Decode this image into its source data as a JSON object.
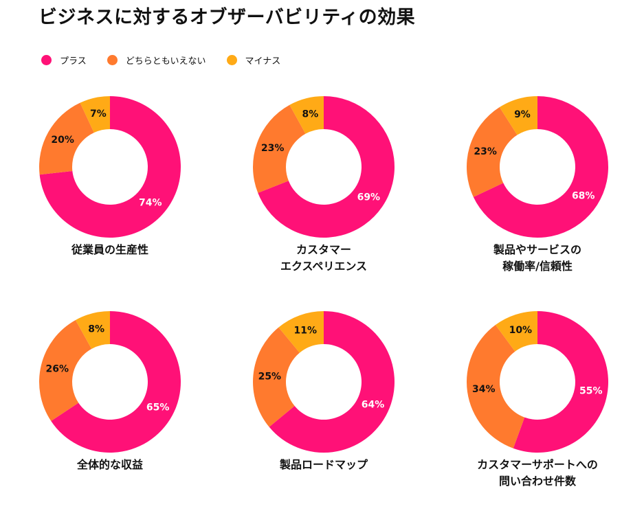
{
  "title": "ビジネスに対するオブザーバビリティの効果",
  "legend": [
    {
      "label": "プラス",
      "color": "#FF1177"
    },
    {
      "label": "どちらともいえない",
      "color": "#FF7A2E"
    },
    {
      "label": "マイナス",
      "color": "#FFAA16"
    }
  ],
  "chart_data": [
    {
      "type": "pie",
      "title": "従業員の生産性",
      "categories": [
        "プラス",
        "どちらともいえない",
        "マイナス"
      ],
      "values": [
        74,
        20,
        7
      ],
      "labels": [
        "74%",
        "20%",
        "7%"
      ]
    },
    {
      "type": "pie",
      "title": "カスタマー\nエクスペリエンス",
      "categories": [
        "プラス",
        "どちらともいえない",
        "マイナス"
      ],
      "values": [
        69,
        23,
        8
      ],
      "labels": [
        "69%",
        "23%",
        "8%"
      ]
    },
    {
      "type": "pie",
      "title": "製品やサービスの\n稼働率/信頼性",
      "categories": [
        "プラス",
        "どちらともいえない",
        "マイナス"
      ],
      "values": [
        68,
        23,
        9
      ],
      "labels": [
        "68%",
        "23%",
        "9%"
      ]
    },
    {
      "type": "pie",
      "title": "全体的な収益",
      "categories": [
        "プラス",
        "どちらともいえない",
        "マイナス"
      ],
      "values": [
        65,
        26,
        8
      ],
      "labels": [
        "65%",
        "26%",
        "8%"
      ]
    },
    {
      "type": "pie",
      "title": "製品ロードマップ",
      "categories": [
        "プラス",
        "どちらともいえない",
        "マイナス"
      ],
      "values": [
        64,
        25,
        11
      ],
      "labels": [
        "64%",
        "25%",
        "11%"
      ]
    },
    {
      "type": "pie",
      "title": "カスタマーサポートへの\n問い合わせ件数",
      "categories": [
        "プラス",
        "どちらともいえない",
        "マイナス"
      ],
      "values": [
        55,
        34,
        10
      ],
      "labels": [
        "55%",
        "34%",
        "10%"
      ]
    }
  ]
}
